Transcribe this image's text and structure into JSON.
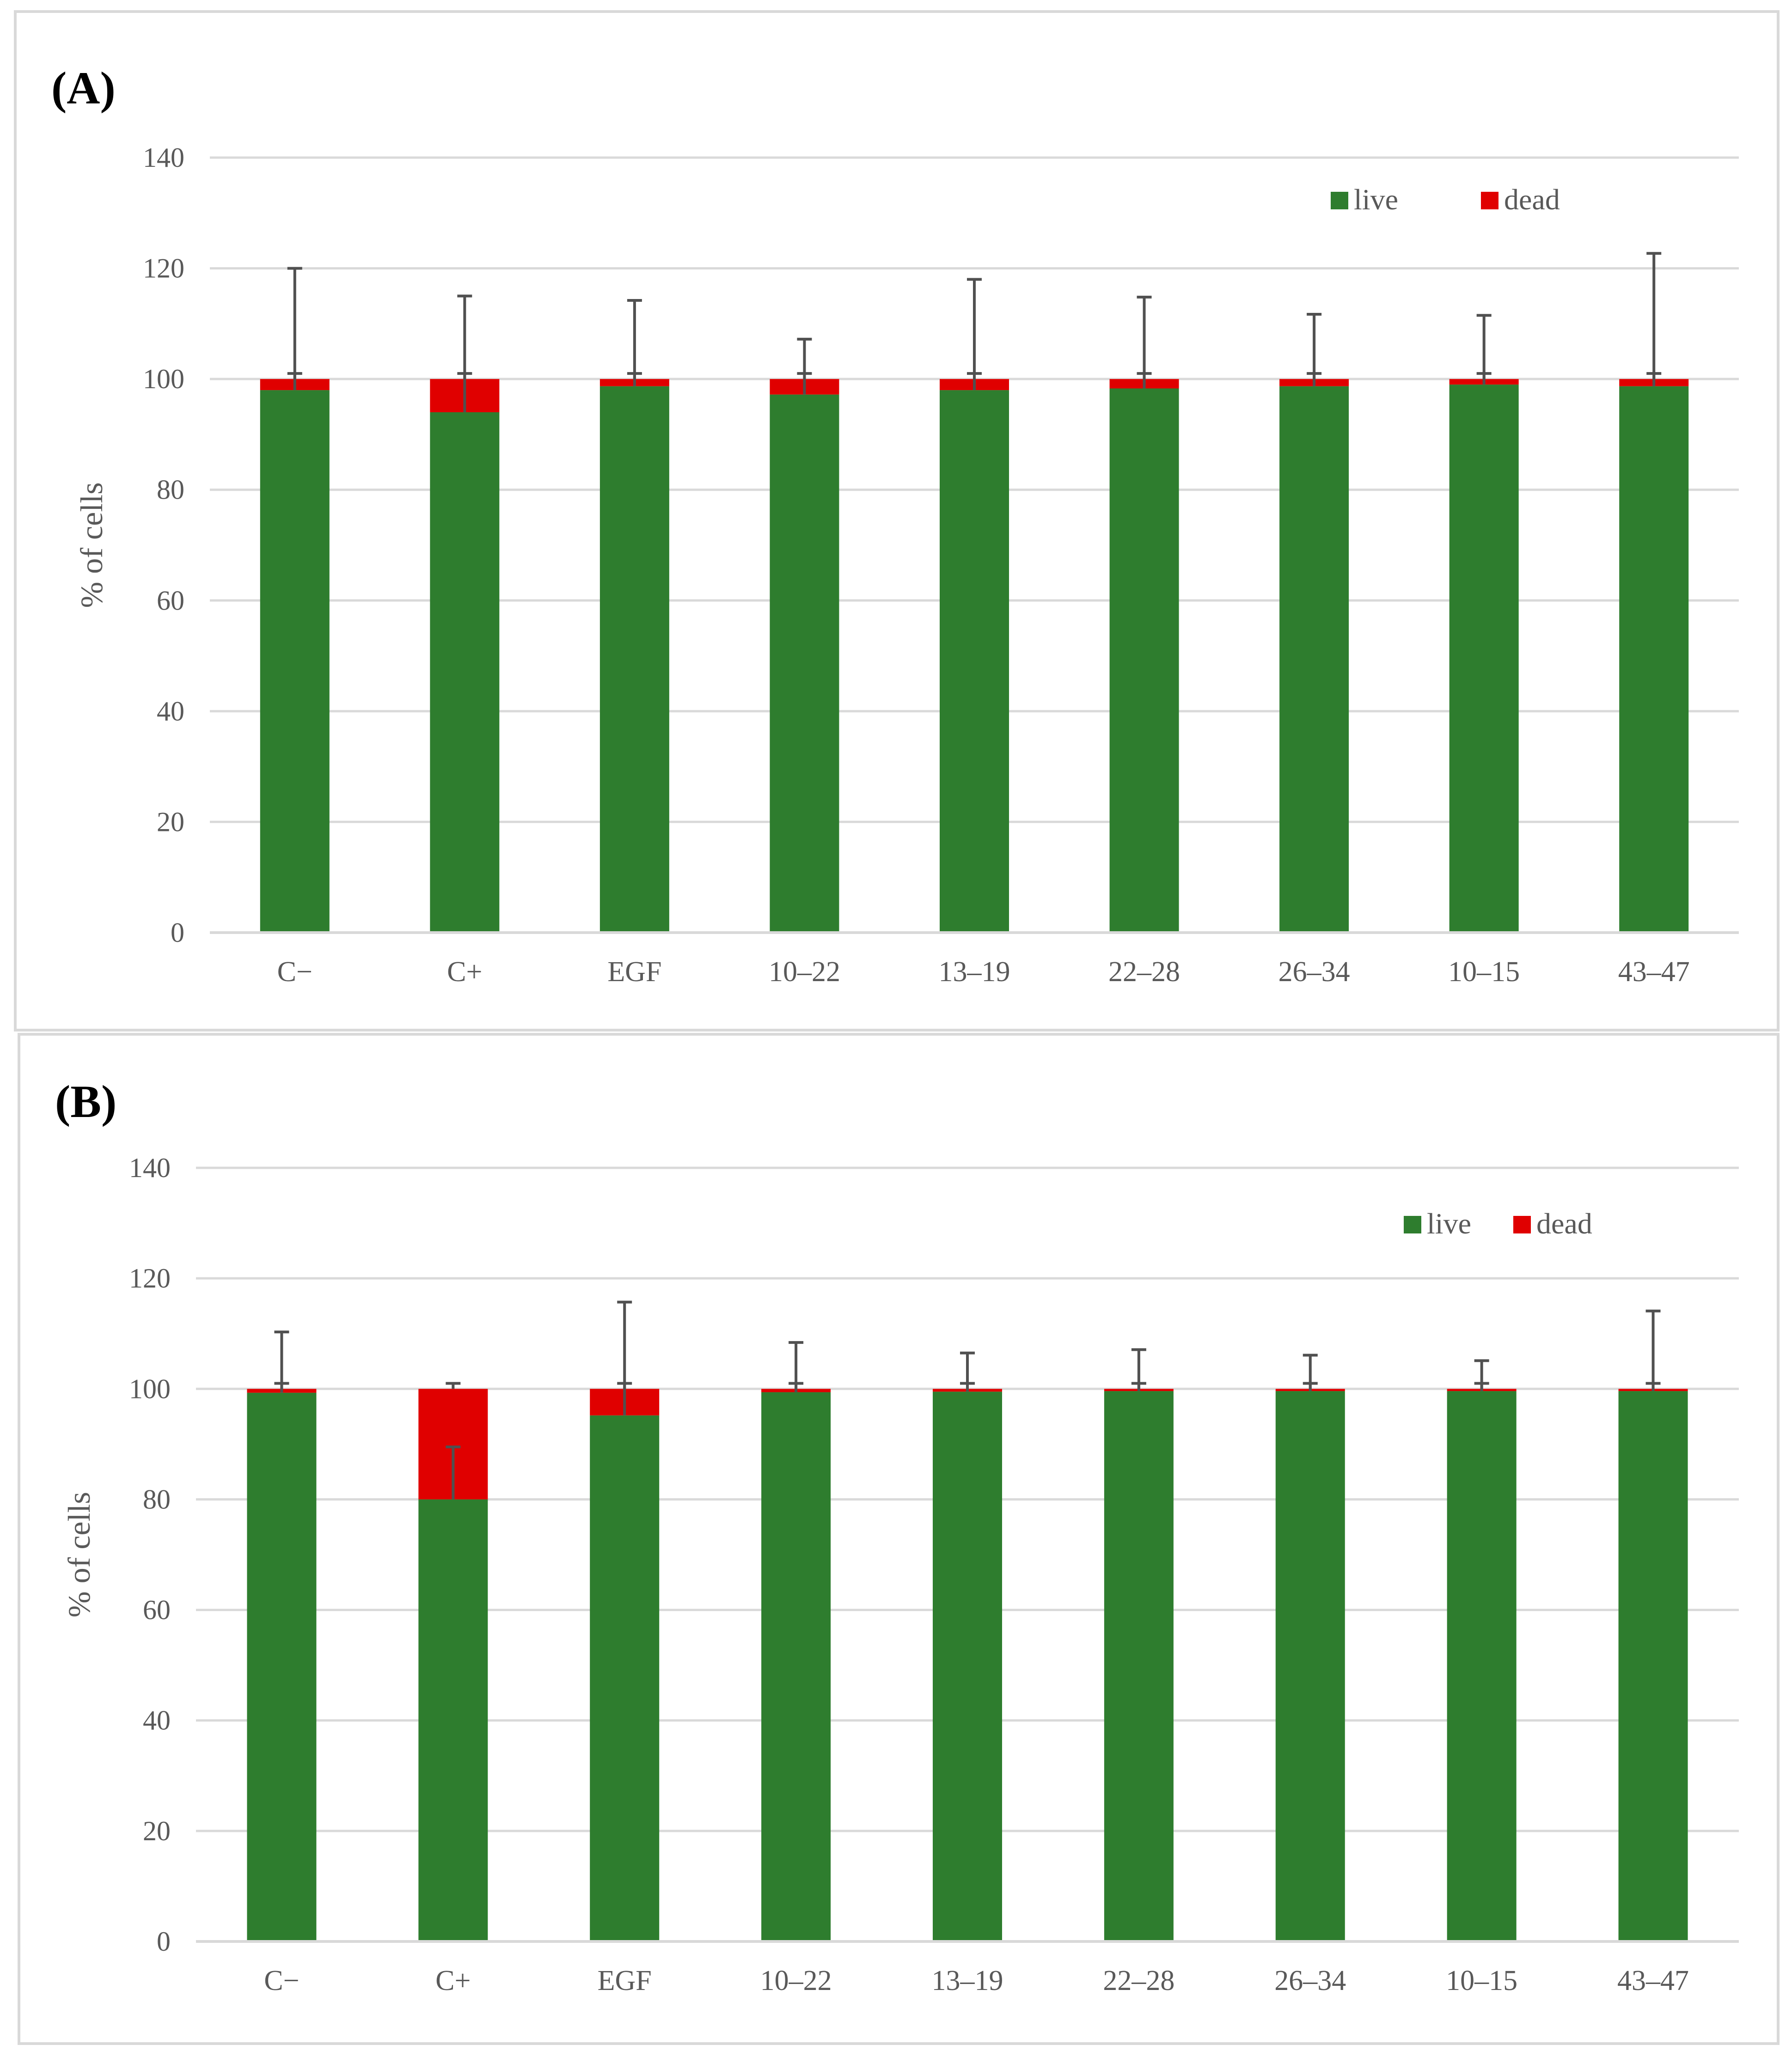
{
  "chart_data": [
    {
      "type": "bar",
      "stacked": true,
      "panel_label": "(A)",
      "title": "",
      "xlabel": "",
      "ylabel": "% of cells",
      "ylim": [
        0,
        140
      ],
      "yticks": [
        "0",
        "20",
        "40",
        "60",
        "80",
        "100",
        "120",
        "140"
      ],
      "grid": true,
      "legend": "top-right",
      "colors": {
        "live": "#2e7d2e",
        "dead": "#e00000",
        "grid": "#d9d9d9",
        "axis": "#d9d9d9",
        "errorbar": "#505050",
        "text": "#595959"
      },
      "categories": [
        "C−",
        "C+",
        "EGF",
        "10–22",
        "13–19",
        "22–28",
        "26–34",
        "10–15",
        "43–47"
      ],
      "series": [
        {
          "name": "live",
          "values": [
            98,
            94,
            98.7,
            97.2,
            98,
            98.3,
            98.7,
            99,
            98.7
          ],
          "error": [
            22,
            21,
            15.5,
            10,
            20,
            16.5,
            13,
            12.5,
            24
          ]
        },
        {
          "name": "dead",
          "values": [
            2,
            6,
            1.3,
            2.8,
            2,
            1.7,
            1.3,
            1,
            1.3
          ],
          "error": [
            1,
            1,
            1,
            1,
            1,
            1,
            1,
            1,
            1
          ]
        }
      ]
    },
    {
      "type": "bar",
      "stacked": true,
      "panel_label": "(B)",
      "title": "",
      "xlabel": "",
      "ylabel": "% of cells",
      "ylim": [
        0,
        140
      ],
      "yticks": [
        "0",
        "20",
        "40",
        "60",
        "80",
        "100",
        "120",
        "140"
      ],
      "grid": true,
      "legend": "top-right",
      "colors": {
        "live": "#2e7d2e",
        "dead": "#e00000",
        "grid": "#d9d9d9",
        "axis": "#d9d9d9",
        "errorbar": "#505050",
        "text": "#595959"
      },
      "categories": [
        "C−",
        "C+",
        "EGF",
        "10–22",
        "13–19",
        "22–28",
        "26–34",
        "10–15",
        "43–47"
      ],
      "series": [
        {
          "name": "live",
          "values": [
            99.3,
            80,
            95.2,
            99.4,
            99.5,
            99.6,
            99.6,
            99.6,
            99.6
          ],
          "error": [
            11,
            9.5,
            20.5,
            9,
            7,
            7.5,
            6.5,
            5.5,
            14.5
          ]
        },
        {
          "name": "dead",
          "values": [
            0.7,
            20,
            4.8,
            0.6,
            0.5,
            0.4,
            0.4,
            0.4,
            0.4
          ],
          "error": [
            1,
            1,
            1,
            1,
            1,
            1,
            1,
            1,
            1
          ]
        }
      ]
    }
  ]
}
